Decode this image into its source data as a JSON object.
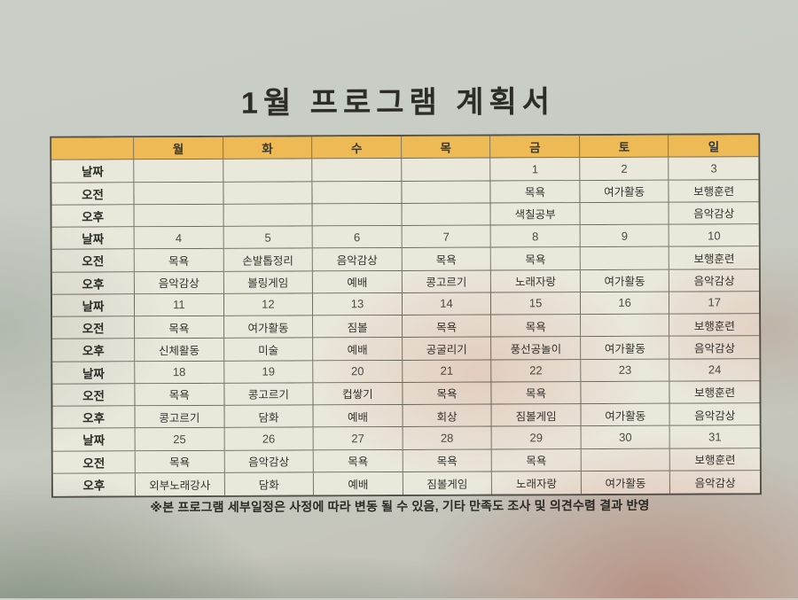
{
  "page": {
    "title": "1월 프로그램 계획서",
    "footnote": "※본 프로그램 세부일정은 사정에 따라 변동 될 수 있음, 기타 만족도 조사 및 의견수렴 결과 반영"
  },
  "table": {
    "corner_label": "",
    "day_headers": [
      "월",
      "화",
      "수",
      "목",
      "금",
      "토",
      "일"
    ],
    "row_labels": {
      "date": "날짜",
      "morning": "오전",
      "afternoon": "오후"
    },
    "weeks": [
      {
        "dates": [
          "",
          "",
          "",
          "",
          "1",
          "2",
          "3"
        ],
        "morning": [
          "",
          "",
          "",
          "",
          "목욕",
          "여가활동",
          "보행훈련"
        ],
        "afternoon": [
          "",
          "",
          "",
          "",
          "색칠공부",
          "",
          "음악감상"
        ]
      },
      {
        "dates": [
          "4",
          "5",
          "6",
          "7",
          "8",
          "9",
          "10"
        ],
        "morning": [
          "목욕",
          "손발톱정리",
          "음악감상",
          "목욕",
          "목욕",
          "",
          "보행훈련"
        ],
        "afternoon": [
          "음악감상",
          "볼링게임",
          "예배",
          "콩고르기",
          "노래자랑",
          "여가활동",
          "음악감상"
        ]
      },
      {
        "dates": [
          "11",
          "12",
          "13",
          "14",
          "15",
          "16",
          "17"
        ],
        "morning": [
          "목욕",
          "여가활동",
          "짐볼",
          "목욕",
          "목욕",
          "",
          "보행훈련"
        ],
        "afternoon": [
          "신체활동",
          "미술",
          "예배",
          "공굴리기",
          "풍선공놀이",
          "여가활동",
          "음악감상"
        ]
      },
      {
        "dates": [
          "18",
          "19",
          "20",
          "21",
          "22",
          "23",
          "24"
        ],
        "morning": [
          "목욕",
          "콩고르기",
          "컵쌓기",
          "목욕",
          "목욕",
          "",
          "보행훈련"
        ],
        "afternoon": [
          "콩고르기",
          "담화",
          "예배",
          "회상",
          "짐볼게임",
          "여가활동",
          "음악감상"
        ]
      },
      {
        "dates": [
          "25",
          "26",
          "27",
          "28",
          "29",
          "30",
          "31"
        ],
        "morning": [
          "목욕",
          "음악감상",
          "목욕",
          "목욕",
          "목욕",
          "",
          "보행훈련"
        ],
        "afternoon": [
          "외부노래강사",
          "담화",
          "예배",
          "짐볼게임",
          "노래자랑",
          "여가활동",
          "음악감상"
        ]
      }
    ]
  },
  "colors": {
    "header_bg": "#edba55",
    "cell_bg": "#eae7db",
    "grid_line": "#6b6a5e",
    "text": "#2d2d28"
  }
}
